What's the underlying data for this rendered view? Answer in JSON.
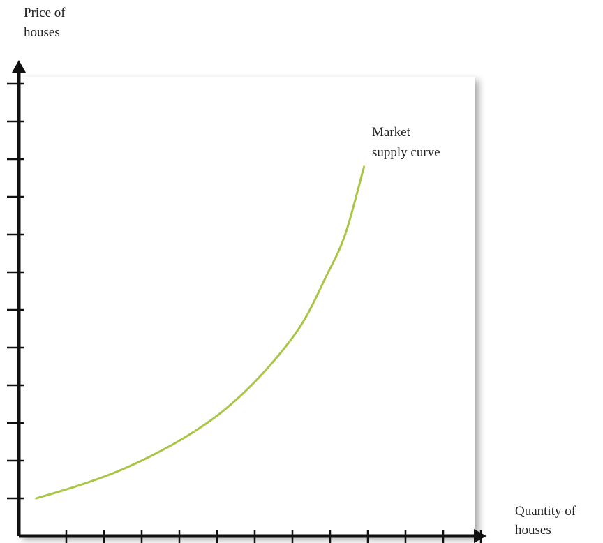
{
  "chart_data": {
    "type": "line",
    "title": "",
    "ylabel": [
      "Price of",
      "houses"
    ],
    "xlabel": [
      "Quantity of",
      "houses"
    ],
    "x_ticks": 12,
    "y_ticks": 12,
    "grid": false,
    "series": [
      {
        "name": "Market supply curve",
        "label_lines": [
          "Market",
          "supply curve"
        ],
        "color": "#a8c545",
        "points": [
          [
            0.2,
            1.0
          ],
          [
            1.2,
            1.3
          ],
          [
            2.2,
            1.65
          ],
          [
            3.2,
            2.1
          ],
          [
            4.2,
            2.65
          ],
          [
            5.2,
            3.35
          ],
          [
            6.2,
            4.3
          ],
          [
            7.2,
            5.55
          ],
          [
            7.9,
            6.9
          ],
          [
            8.4,
            8.0
          ],
          [
            8.9,
            9.8
          ]
        ]
      }
    ]
  }
}
